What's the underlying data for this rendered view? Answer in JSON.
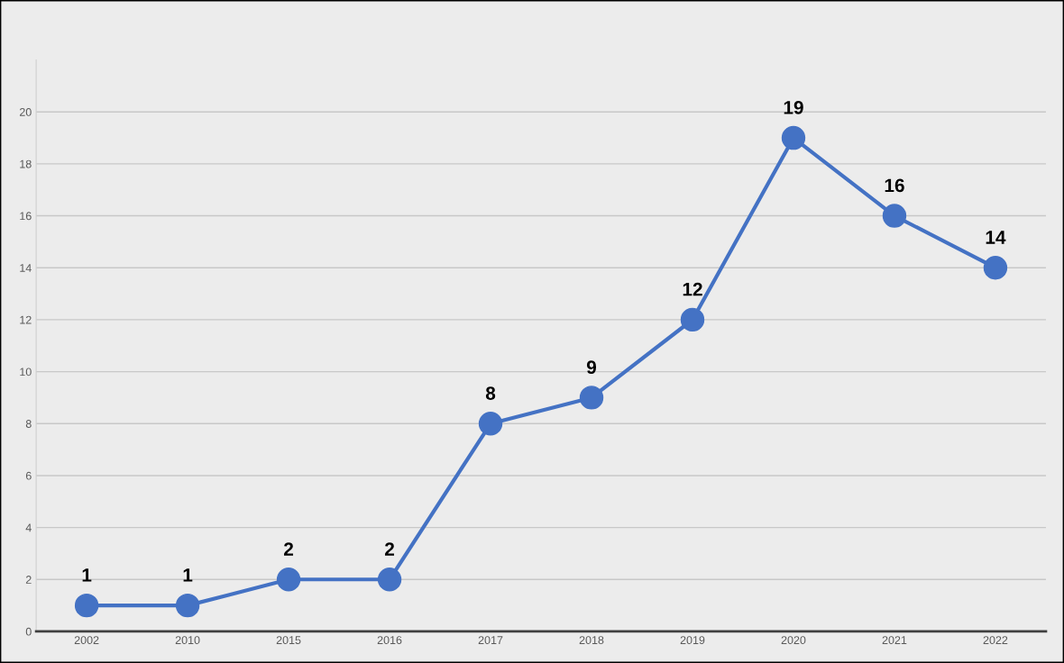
{
  "chart_data": {
    "type": "line",
    "categories": [
      "2002",
      "2010",
      "2015",
      "2016",
      "2017",
      "2018",
      "2019",
      "2020",
      "2021",
      "2022"
    ],
    "series": [
      {
        "color": "#4472c4",
        "values": [
          1,
          1,
          2,
          2,
          8,
          9,
          12,
          19,
          16,
          14
        ]
      }
    ],
    "ylim": [
      0,
      22
    ],
    "yticks": [
      0,
      2,
      4,
      6,
      8,
      10,
      12,
      14,
      16,
      18,
      20
    ],
    "grid": "y",
    "marker": "circle",
    "line_style": "solid",
    "data_labels": true,
    "legend": false
  }
}
